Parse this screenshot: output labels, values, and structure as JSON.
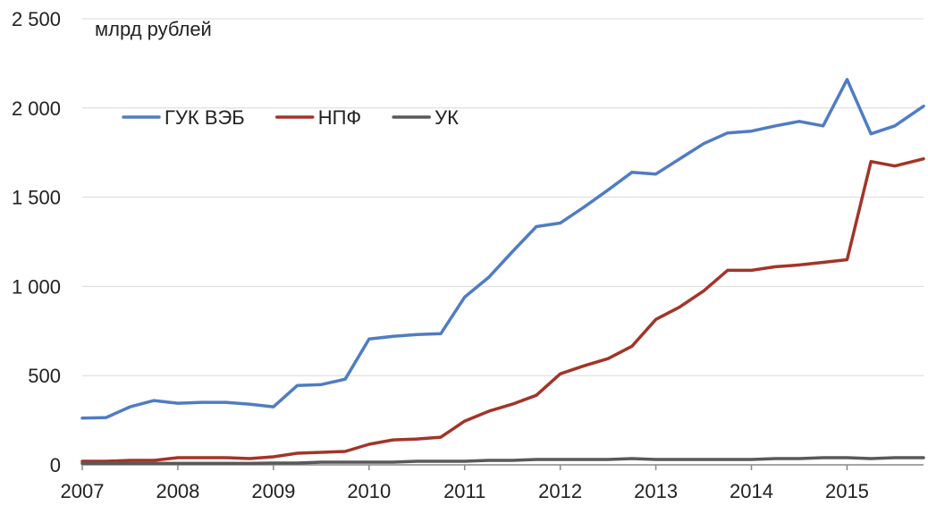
{
  "chart_data": {
    "type": "line",
    "title": "",
    "xlabel": "",
    "ylabel": "млрд рублей",
    "ylim": [
      0,
      2500
    ],
    "yticks": [
      0,
      500,
      1000,
      1500,
      2000,
      2500
    ],
    "ytick_labels": [
      "0",
      "500",
      "1 000",
      "1 500",
      "2 000",
      "2 500"
    ],
    "xlim": [
      2007,
      2015.8
    ],
    "xticks": [
      2007,
      2008,
      2009,
      2010,
      2011,
      2012,
      2013,
      2014,
      2015
    ],
    "xtick_labels": [
      "2007",
      "2008",
      "2009",
      "2010",
      "2011",
      "2012",
      "2013",
      "2014",
      "2015"
    ],
    "grid": "horizontal",
    "legend_position": "top-left",
    "x": [
      2007,
      2007.25,
      2007.5,
      2007.75,
      2008,
      2008.25,
      2008.5,
      2008.75,
      2009,
      2009.25,
      2009.5,
      2009.75,
      2010,
      2010.25,
      2010.5,
      2010.75,
      2011,
      2011.25,
      2011.5,
      2011.75,
      2012,
      2012.25,
      2012.5,
      2012.75,
      2013,
      2013.25,
      2013.5,
      2013.75,
      2014,
      2014.25,
      2014.5,
      2014.75,
      2015,
      2015.25,
      2015.5,
      2015.8
    ],
    "series": [
      {
        "name": "ГУК ВЭБ",
        "color": "#4f7cc4",
        "values": [
          262,
          265,
          325,
          360,
          345,
          350,
          350,
          340,
          325,
          445,
          450,
          480,
          705,
          720,
          730,
          735,
          940,
          1050,
          1195,
          1335,
          1355,
          1445,
          1540,
          1640,
          1630,
          1715,
          1800,
          1860,
          1870,
          1900,
          1925,
          1900,
          2160,
          1855,
          1900,
          2010
        ]
      },
      {
        "name": "НПФ",
        "color": "#a33428",
        "values": [
          20,
          20,
          25,
          25,
          40,
          40,
          40,
          35,
          45,
          65,
          70,
          75,
          115,
          140,
          145,
          155,
          245,
          300,
          340,
          390,
          510,
          555,
          595,
          665,
          815,
          885,
          975,
          1090,
          1090,
          1110,
          1120,
          1135,
          1150,
          1700,
          1675,
          1715
        ]
      },
      {
        "name": "УК",
        "color": "#595959",
        "values": [
          8,
          8,
          8,
          8,
          8,
          8,
          8,
          8,
          10,
          10,
          15,
          15,
          15,
          15,
          20,
          20,
          20,
          25,
          25,
          30,
          30,
          30,
          30,
          35,
          30,
          30,
          30,
          30,
          30,
          35,
          35,
          40,
          40,
          35,
          40,
          40
        ]
      }
    ]
  }
}
